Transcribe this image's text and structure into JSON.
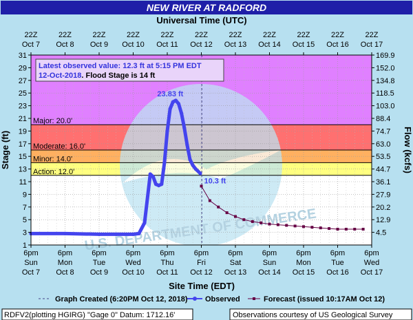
{
  "chart_data": {
    "type": "line",
    "title": "NEW RIVER AT RADFORD",
    "top_axis_title": "Universal Time (UTC)",
    "xlabel": "Site Time (EDT)",
    "ylabel": "Stage (ft)",
    "y2label": "Flow (kcfs)",
    "ylim": [
      1,
      31
    ],
    "xlim": [
      "2018-10-07 18:00",
      "2018-10-17 18:00"
    ],
    "grid": true,
    "y_ticks": [
      1,
      3,
      5,
      7,
      9,
      11,
      13,
      15,
      17,
      19,
      21,
      23,
      25,
      27,
      29,
      31
    ],
    "flow_ticks": [
      {
        "stage": 31,
        "label": "169.9"
      },
      {
        "stage": 29,
        "label": "152.0"
      },
      {
        "stage": 27,
        "label": "134.8"
      },
      {
        "stage": 25,
        "label": "118.5"
      },
      {
        "stage": 23,
        "label": "103.0"
      },
      {
        "stage": 21,
        "label": "88.4"
      },
      {
        "stage": 19,
        "label": "74.7"
      },
      {
        "stage": 17,
        "label": "63.0"
      },
      {
        "stage": 15,
        "label": "53.5"
      },
      {
        "stage": 13,
        "label": "44.7"
      },
      {
        "stage": 11,
        "label": "36.1"
      },
      {
        "stage": 9,
        "label": "27.9"
      },
      {
        "stage": 7,
        "label": "20.2"
      },
      {
        "stage": 5,
        "label": "12.9"
      },
      {
        "stage": 3,
        "label": "4.5"
      }
    ],
    "bottom_ticks": [
      {
        "time": "6pm",
        "day": "Sun",
        "date": "Oct 7"
      },
      {
        "time": "6pm",
        "day": "Mon",
        "date": "Oct 8"
      },
      {
        "time": "6pm",
        "day": "Tue",
        "date": "Oct 9"
      },
      {
        "time": "6pm",
        "day": "Wed",
        "date": "Oct 10"
      },
      {
        "time": "6pm",
        "day": "Thu",
        "date": "Oct 11"
      },
      {
        "time": "6pm",
        "day": "Fri",
        "date": "Oct 12"
      },
      {
        "time": "6pm",
        "day": "Sat",
        "date": "Oct 13"
      },
      {
        "time": "6pm",
        "day": "Sun",
        "date": "Oct 14"
      },
      {
        "time": "6pm",
        "day": "Mon",
        "date": "Oct 15"
      },
      {
        "time": "6pm",
        "day": "Tue",
        "date": "Oct 16"
      },
      {
        "time": "6pm",
        "day": "Wed",
        "date": "Oct 17"
      }
    ],
    "top_ticks": [
      {
        "time": "22Z",
        "date": "Oct 7"
      },
      {
        "time": "22Z",
        "date": "Oct 8"
      },
      {
        "time": "22Z",
        "date": "Oct 9"
      },
      {
        "time": "22Z",
        "date": "Oct 10"
      },
      {
        "time": "22Z",
        "date": "Oct 11"
      },
      {
        "time": "22Z",
        "date": "Oct 12"
      },
      {
        "time": "22Z",
        "date": "Oct 13"
      },
      {
        "time": "22Z",
        "date": "Oct 14"
      },
      {
        "time": "22Z",
        "date": "Oct 15"
      },
      {
        "time": "22Z",
        "date": "Oct 16"
      },
      {
        "time": "22Z",
        "date": "Oct 17"
      }
    ],
    "flood_categories": [
      {
        "name": "Action",
        "label": "Action: 12.0'",
        "from": 12,
        "to": 14,
        "color": "#ffff80"
      },
      {
        "name": "Minor",
        "label": "Minor: 14.0'",
        "from": 14,
        "to": 16,
        "color": "#ffb060"
      },
      {
        "name": "Moderate",
        "label": "Moderate: 16.0'",
        "from": 16,
        "to": 20,
        "color": "#ff7070"
      },
      {
        "name": "Major",
        "label": "Major: 20.0'",
        "from": 20,
        "to": 31,
        "color": "#e080ff"
      }
    ],
    "graph_created": "2018-10-12 18:20",
    "series": [
      {
        "name": "Observed",
        "color": "#4444ee",
        "points": [
          [
            "2018-10-07 18:00",
            2.8
          ],
          [
            "2018-10-08 18:00",
            2.8
          ],
          [
            "2018-10-09 18:00",
            2.7
          ],
          [
            "2018-10-10 06:00",
            2.7
          ],
          [
            "2018-10-10 18:00",
            2.7
          ],
          [
            "2018-10-10 22:00",
            2.8
          ],
          [
            "2018-10-11 02:00",
            4.5
          ],
          [
            "2018-10-11 06:00",
            12.2
          ],
          [
            "2018-10-11 08:00",
            11.8
          ],
          [
            "2018-10-11 10:00",
            10.6
          ],
          [
            "2018-10-11 12:00",
            10.4
          ],
          [
            "2018-10-11 14:00",
            10.6
          ],
          [
            "2018-10-11 16:00",
            14.0
          ],
          [
            "2018-10-11 18:00",
            19.0
          ],
          [
            "2018-10-11 20:00",
            22.5
          ],
          [
            "2018-10-11 22:00",
            23.6
          ],
          [
            "2018-10-12 00:00",
            23.83
          ],
          [
            "2018-10-12 02:00",
            23.3
          ],
          [
            "2018-10-12 04:00",
            21.8
          ],
          [
            "2018-10-12 06:00",
            19.5
          ],
          [
            "2018-10-12 08:00",
            16.8
          ],
          [
            "2018-10-12 10:00",
            14.5
          ],
          [
            "2018-10-12 12:00",
            13.6
          ],
          [
            "2018-10-12 14:00",
            13.0
          ],
          [
            "2018-10-12 17:15",
            12.3
          ]
        ]
      },
      {
        "name": "Forecast (issued 10:17AM Oct 12)",
        "color": "#660044",
        "points": [
          [
            "2018-10-12 18:00",
            10.3
          ],
          [
            "2018-10-13 00:00",
            8.0
          ],
          [
            "2018-10-13 06:00",
            7.0
          ],
          [
            "2018-10-13 12:00",
            6.1
          ],
          [
            "2018-10-13 18:00",
            5.5
          ],
          [
            "2018-10-14 00:00",
            5.0
          ],
          [
            "2018-10-14 06:00",
            4.7
          ],
          [
            "2018-10-14 12:00",
            4.5
          ],
          [
            "2018-10-14 18:00",
            4.3
          ],
          [
            "2018-10-15 00:00",
            4.2
          ],
          [
            "2018-10-15 06:00",
            4.1
          ],
          [
            "2018-10-15 12:00",
            4.0
          ],
          [
            "2018-10-15 18:00",
            3.9
          ],
          [
            "2018-10-16 00:00",
            3.8
          ],
          [
            "2018-10-16 06:00",
            3.7
          ],
          [
            "2018-10-16 12:00",
            3.6
          ],
          [
            "2018-10-16 18:00",
            3.5
          ],
          [
            "2018-10-17 00:00",
            3.5
          ],
          [
            "2018-10-17 06:00",
            3.5
          ],
          [
            "2018-10-17 12:00",
            3.5
          ]
        ]
      }
    ],
    "annotations": [
      {
        "text": "23.83 ft",
        "at": [
          "2018-10-12 00:00",
          23.83
        ]
      },
      {
        "text": "10.3 ft",
        "at": [
          "2018-10-12 18:00",
          10.3
        ]
      }
    ]
  },
  "info_box": {
    "line1": "Latest observed value: 12.3 ft at 5:15 PM EDT",
    "line2_date": "12-Oct-2018",
    "line2_rest": ". Flood Stage is 14 ft"
  },
  "legend": {
    "graph_created": "Graph Created (6:20PM Oct 12, 2018)",
    "observed": "Observed",
    "forecast": "Forecast (issued 10:17AM Oct 12)"
  },
  "footer": {
    "left": "RDFV2(plotting HGIRG) \"Gage 0\" Datum: 1712.16'",
    "right": "Observations courtesy of US Geological Survey"
  },
  "colors": {
    "title_bar": "#1f1fa8",
    "background": "#b7e0f0",
    "observed": "#4444ee",
    "forecast": "#660044",
    "info_text": "#3333dd"
  }
}
